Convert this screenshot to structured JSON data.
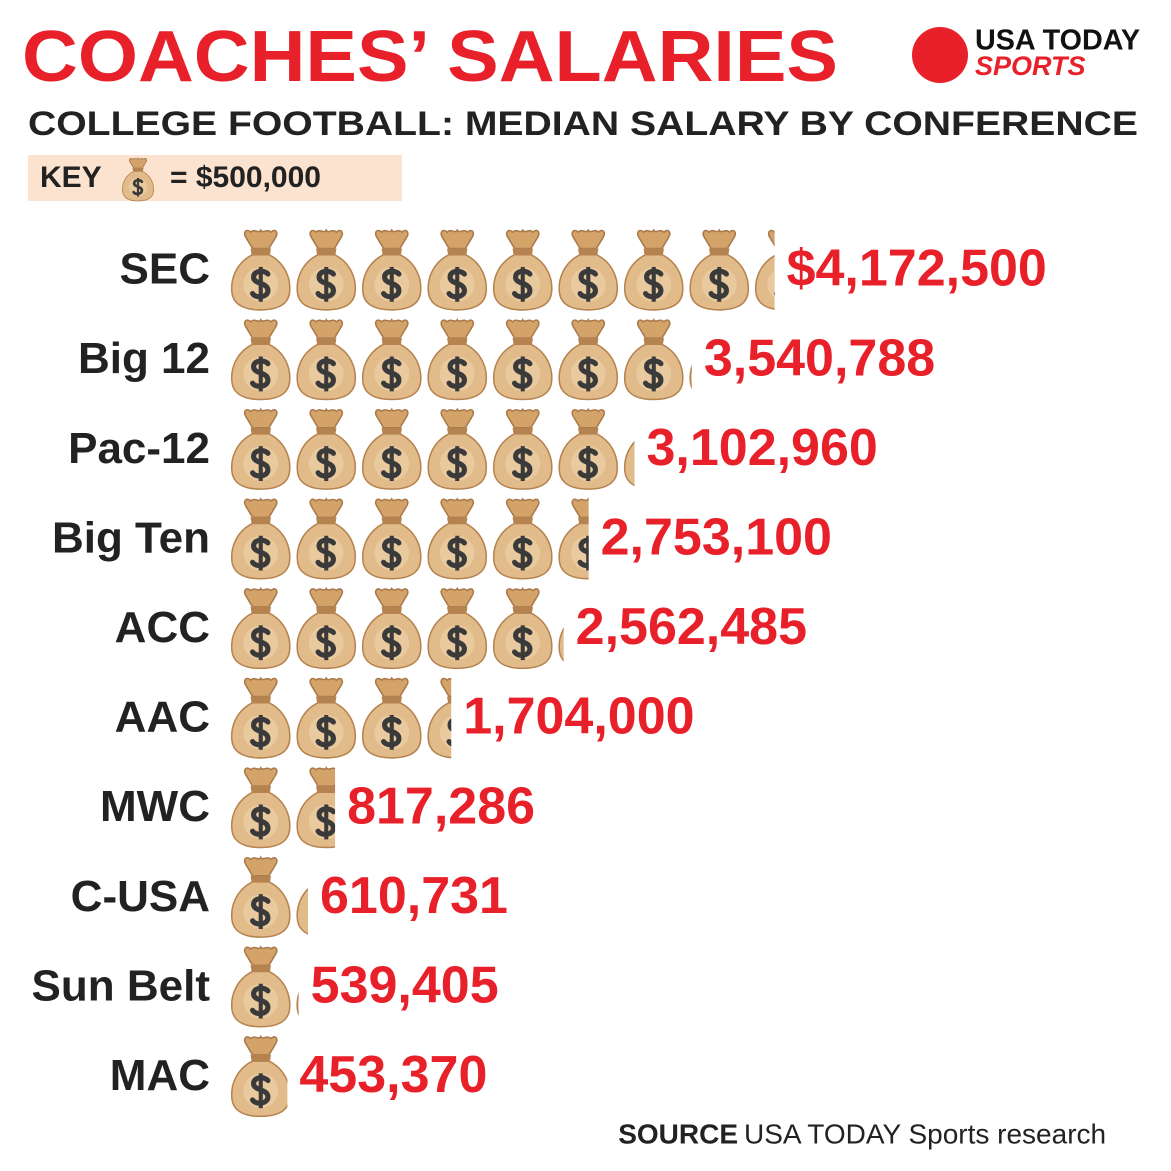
{
  "chart_data": {
    "type": "pictograph",
    "title": "COACHES’ SALARIES",
    "subtitle": "COLLEGE FOOTBALL: MEDIAN SALARY BY CONFERENCE",
    "key": {
      "label": "KEY",
      "unit": {
        "value": 500000,
        "label": "= $500,000"
      }
    },
    "logo": {
      "line1": "USA TODAY",
      "line2": "SPORTS"
    },
    "source": {
      "label": "SOURCE",
      "text": "USA TODAY Sports research"
    },
    "categories": [
      "SEC",
      "Big 12",
      "Pac-12",
      "Big Ten",
      "ACC",
      "AAC",
      "MWC",
      "C-USA",
      "Sun Belt",
      "MAC"
    ],
    "values": [
      4172500,
      3540788,
      3102960,
      2753100,
      2562485,
      1704000,
      817286,
      610731,
      539405,
      453370
    ],
    "value_labels": [
      "$4,172,500",
      "3,540,788",
      "3,102,960",
      "2,753,100",
      "2,562,485",
      "1,704,000",
      "817,286",
      "610,731",
      "539,405",
      "453,370"
    ],
    "color": "#e8202a"
  }
}
